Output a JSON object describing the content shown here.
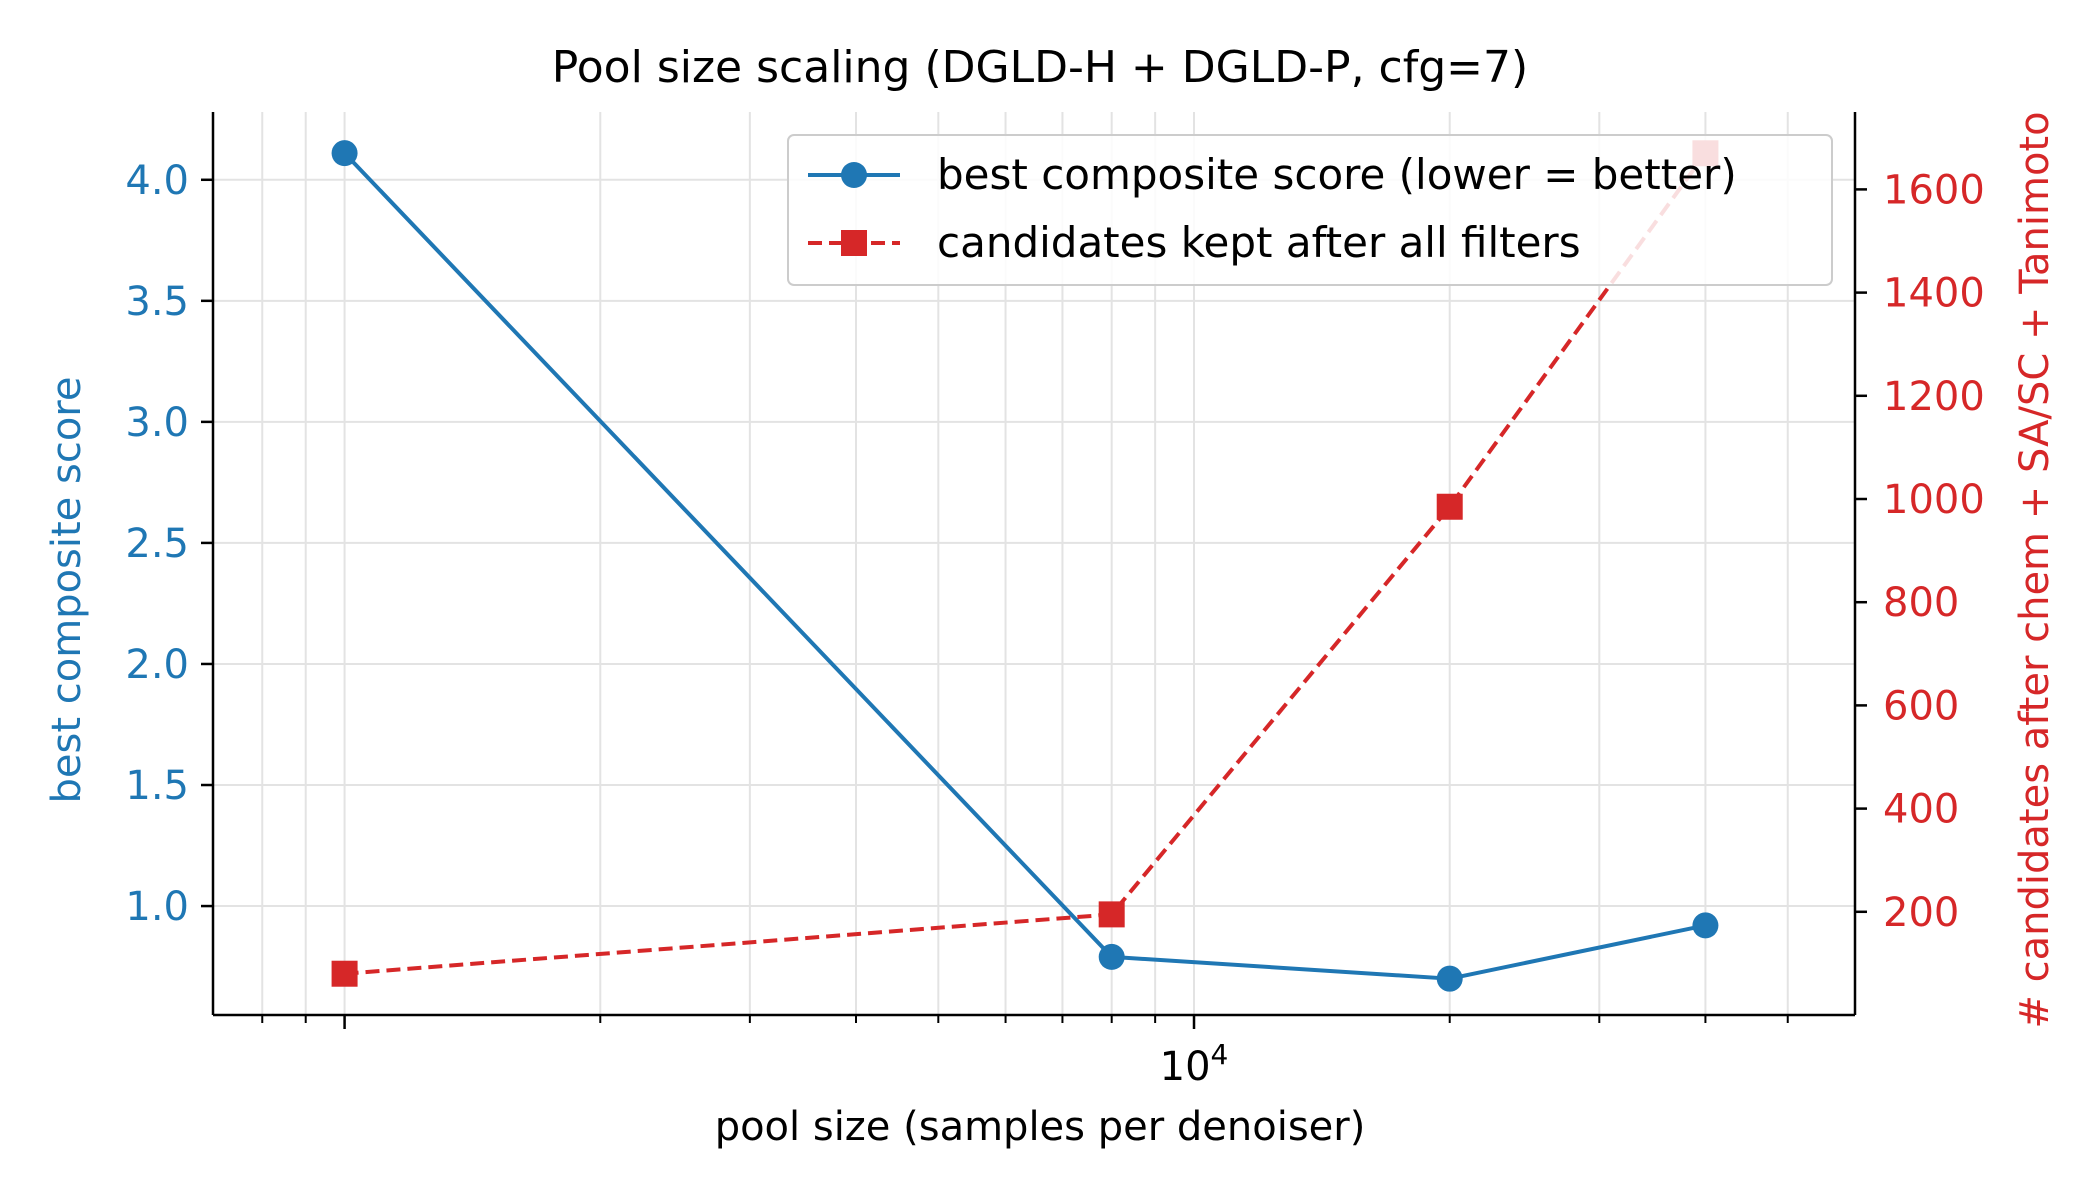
{
  "chart_data": {
    "type": "line",
    "title": "Pool size scaling (DGLD-H + DGLD-P, cfg=7)",
    "xlabel": "pool size (samples per denoiser)",
    "ylabel_left": "best composite score",
    "ylabel_right": "# candidates after chem + SA/SC + Tanimoto",
    "x_scale": "log",
    "x_tick_label": {
      "base": "10",
      "exponent": "4"
    },
    "x": [
      1000,
      8000,
      20000,
      40000
    ],
    "xlim": [
      700,
      60000
    ],
    "ylim_left": [
      0.55,
      4.28
    ],
    "ylim_right": [
      0,
      1750
    ],
    "yticks_left": [
      "1.0",
      "1.5",
      "2.0",
      "2.5",
      "3.0",
      "3.5",
      "4.0"
    ],
    "yticks_right": [
      "200",
      "400",
      "600",
      "800",
      "1000",
      "1200",
      "1400",
      "1600"
    ],
    "grid": true,
    "legend_position": "top-right",
    "series": [
      {
        "name": "best composite score (lower = better)",
        "axis": "left",
        "values": [
          4.11,
          0.79,
          0.7,
          0.92
        ],
        "color": "#1f77b4",
        "marker": "circle",
        "linestyle": "solid"
      },
      {
        "name": "candidates kept after all filters",
        "axis": "right",
        "values": [
          80,
          195,
          985,
          1670
        ],
        "color": "#d62728",
        "marker": "square",
        "linestyle": "dashed"
      }
    ]
  }
}
